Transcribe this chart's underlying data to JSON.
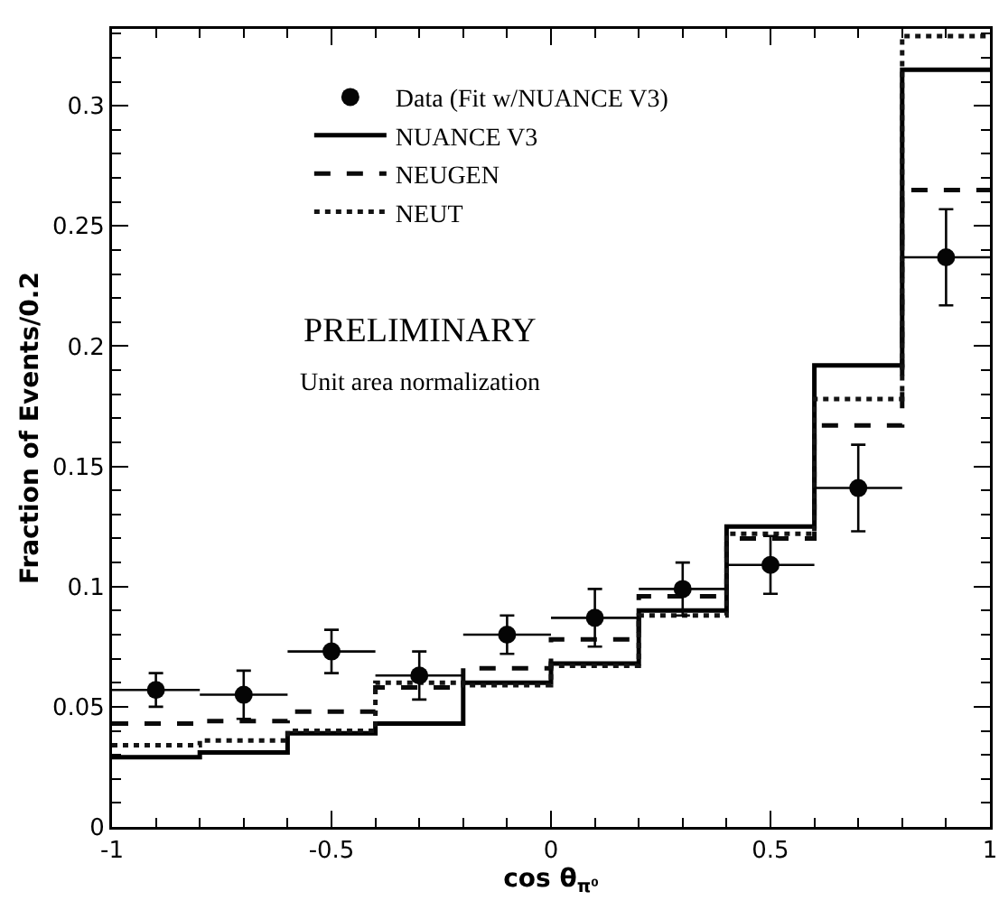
{
  "chart_data": {
    "type": "histogram",
    "xlabel": "cos θ$_{π⁰}$",
    "ylabel": "Fraction of Events/0.2",
    "bins": [
      -1,
      -0.8,
      -0.6,
      -0.4,
      -0.2,
      0,
      0.2,
      0.4,
      0.6,
      0.8,
      1
    ],
    "series": [
      {
        "name": "NUANCE V3",
        "color": "#000000",
        "line_style": "solid",
        "values": [
          0.029,
          0.031,
          0.039,
          0.043,
          0.06,
          0.068,
          0.09,
          0.125,
          0.192,
          0.315
        ]
      },
      {
        "name": "NEUGEN",
        "color": "#0a0a0a",
        "line_style": "dashed",
        "values": [
          0.043,
          0.044,
          0.048,
          0.058,
          0.066,
          0.078,
          0.096,
          0.12,
          0.167,
          0.265
        ]
      },
      {
        "name": "NEUT",
        "color": "#141414",
        "line_style": "dotted",
        "values": [
          0.034,
          0.036,
          0.04,
          0.06,
          0.059,
          0.067,
          0.088,
          0.122,
          0.178,
          0.329
        ]
      },
      {
        "type": "scatter",
        "name": "Data (Fit w/NUANCE V3)",
        "color": "#050505",
        "marker": "circle",
        "x": [
          -0.9,
          -0.7,
          -0.5,
          -0.3,
          -0.1,
          0.1,
          0.3,
          0.5,
          0.7,
          0.9
        ],
        "values": [
          0.057,
          0.055,
          0.073,
          0.063,
          0.08,
          0.087,
          0.099,
          0.109,
          0.141,
          0.237
        ],
        "errors": [
          0.007,
          0.01,
          0.009,
          0.01,
          0.008,
          0.012,
          0.011,
          0.012,
          0.018,
          0.02
        ],
        "xerrors": [
          0.1,
          0.1,
          0.1,
          0.1,
          0.1,
          0.1,
          0.1,
          0.1,
          0.1,
          0.1
        ]
      }
    ],
    "xlim": [
      -1,
      1
    ],
    "xticks": [
      -1,
      -0.5,
      0,
      0.5,
      1
    ],
    "ylim": [
      0,
      0.332
    ],
    "yticks": [
      0,
      0.05,
      0.1,
      0.15,
      0.2,
      0.25,
      0.3
    ],
    "legend": "top",
    "grid": false,
    "annotations": [
      "PRELIMINARY",
      "Unit area normalization"
    ]
  }
}
